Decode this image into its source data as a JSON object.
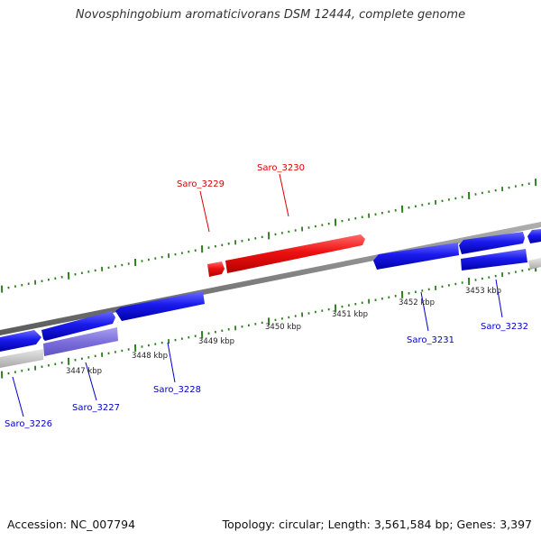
{
  "title": "Novosphingobium aromaticivorans DSM 12444, complete genome",
  "footer": {
    "accession": "Accession: NC_007794",
    "stats": "Topology: circular; Length: 3,561,584 bp; Genes: 3,397"
  },
  "colors": {
    "background": "#ffffff",
    "backbone": "#808080",
    "tick": "#2e7d1e",
    "gene_forward_highlight": "#ee1111",
    "gene_reverse": "#1a1aee",
    "gene_reverse_faded": "#7c6fdc",
    "gene_gray": "#c8c8c8",
    "label_red": "#dd0000",
    "label_blue": "#0000cc"
  },
  "axis": {
    "kbp_labels": [
      "3447 kbp",
      "3448 kbp",
      "3449 kbp",
      "3450 kbp",
      "3451 kbp",
      "3452 kbp",
      "3453 kbp"
    ]
  },
  "genes": [
    {
      "id": "Saro_3226",
      "label": "Saro_3226",
      "color": "label_blue"
    },
    {
      "id": "Saro_3227",
      "label": "Saro_3227",
      "color": "label_blue"
    },
    {
      "id": "Saro_3228",
      "label": "Saro_3228",
      "color": "label_blue"
    },
    {
      "id": "Saro_3229",
      "label": "Saro_3229",
      "color": "label_red"
    },
    {
      "id": "Saro_3230",
      "label": "Saro_3230",
      "color": "label_red"
    },
    {
      "id": "Saro_3231",
      "label": "Saro_3231",
      "color": "label_blue"
    },
    {
      "id": "Saro_3232",
      "label": "Saro_3232",
      "color": "label_blue"
    }
  ]
}
